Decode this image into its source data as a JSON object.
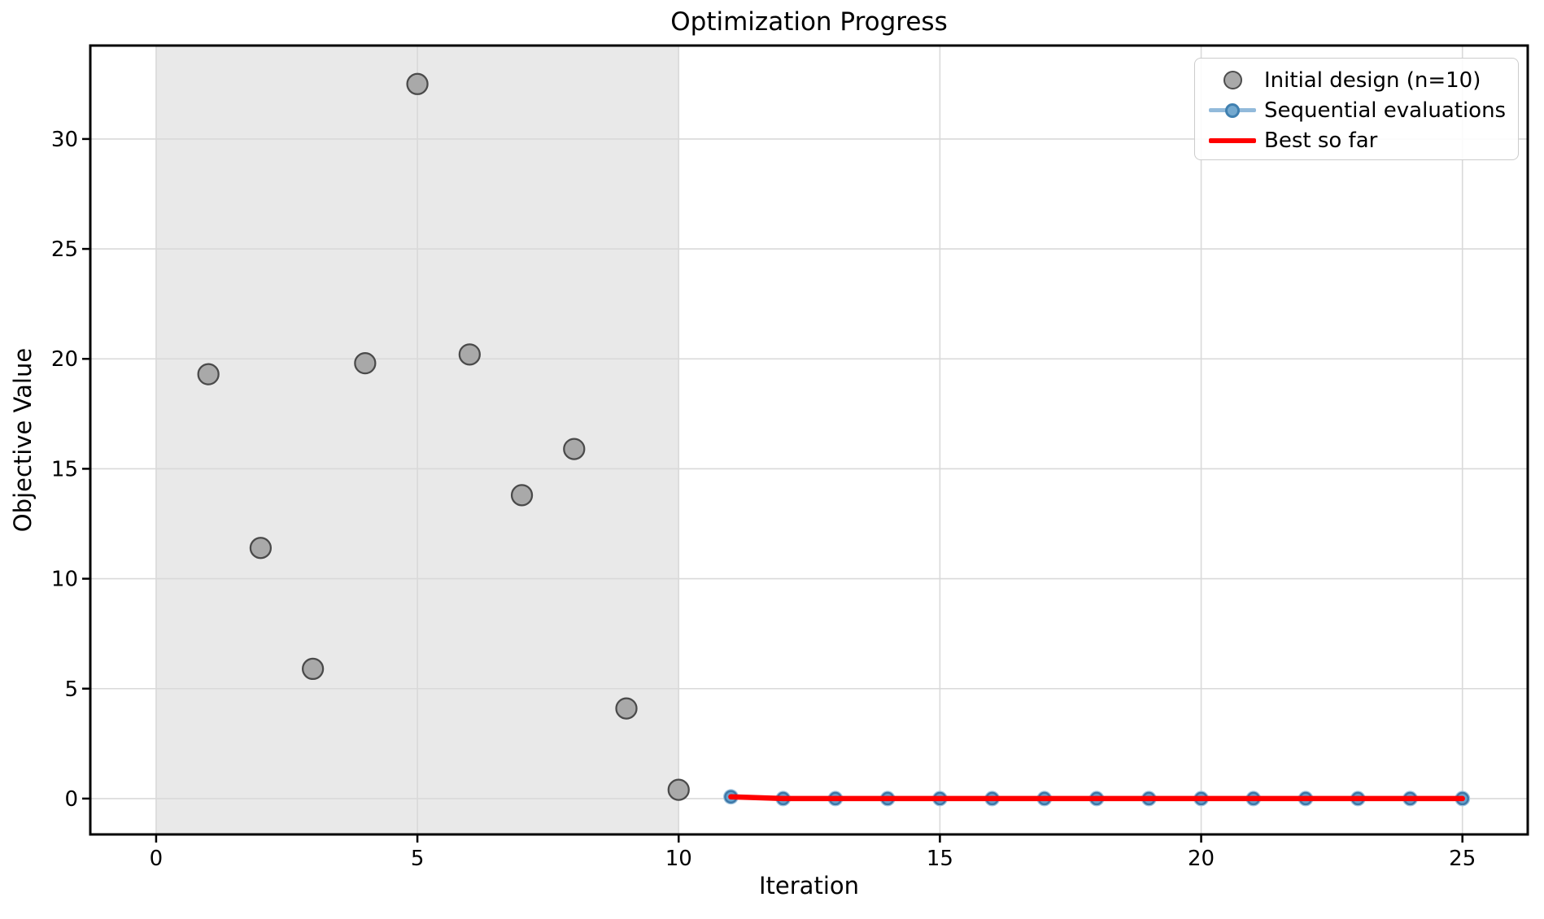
{
  "chart_data": {
    "type": "scatter",
    "title": "Optimization Progress",
    "xlabel": "Iteration",
    "ylabel": "Objective Value",
    "xlim": [
      -1.26,
      26.25
    ],
    "ylim": [
      -1.63,
      34.25
    ],
    "x_ticks": [
      0,
      5,
      10,
      15,
      20,
      25
    ],
    "y_ticks": [
      0,
      5,
      10,
      15,
      20,
      25,
      30
    ],
    "grid": true,
    "shaded_region": {
      "name": "initial-design-span",
      "x_start": 0,
      "x_end": 10,
      "fill": "#e9e9e9"
    },
    "series": [
      {
        "name": "Initial design (n=10)",
        "type": "scatter",
        "marker_fill": "#a9a9a9",
        "marker_edge": "#4a4a4a",
        "x": [
          1,
          2,
          3,
          4,
          5,
          6,
          7,
          8,
          9,
          10
        ],
        "y": [
          19.3,
          11.4,
          5.9,
          19.8,
          32.5,
          20.2,
          13.8,
          15.9,
          4.1,
          0.4
        ]
      },
      {
        "name": "Sequential evaluations",
        "type": "line_markers",
        "line_color": "#92badb",
        "marker_fill": "#6ba3cd",
        "marker_edge": "#3e78a8",
        "x": [
          11,
          12,
          13,
          14,
          15,
          16,
          17,
          18,
          19,
          20,
          21,
          22,
          23,
          24,
          25
        ],
        "y": [
          0.08,
          0.0,
          0.0,
          0.0,
          0.0,
          0.0,
          0.0,
          0.0,
          0.0,
          0.0,
          0.0,
          0.0,
          0.0,
          0.0,
          0.0
        ]
      },
      {
        "name": "Best so far",
        "type": "line",
        "line_color": "#ff0000",
        "x": [
          11,
          12,
          13,
          14,
          15,
          16,
          17,
          18,
          19,
          20,
          21,
          22,
          23,
          24,
          25
        ],
        "y": [
          0.08,
          0.0,
          0.0,
          0.0,
          0.0,
          0.0,
          0.0,
          0.0,
          0.0,
          0.0,
          0.0,
          0.0,
          0.0,
          0.0,
          0.0
        ]
      }
    ],
    "legend": {
      "position": "upper-right",
      "items": [
        {
          "label": "Initial design (n=10)"
        },
        {
          "label": "Sequential evaluations"
        },
        {
          "label": "Best so far"
        }
      ]
    }
  }
}
